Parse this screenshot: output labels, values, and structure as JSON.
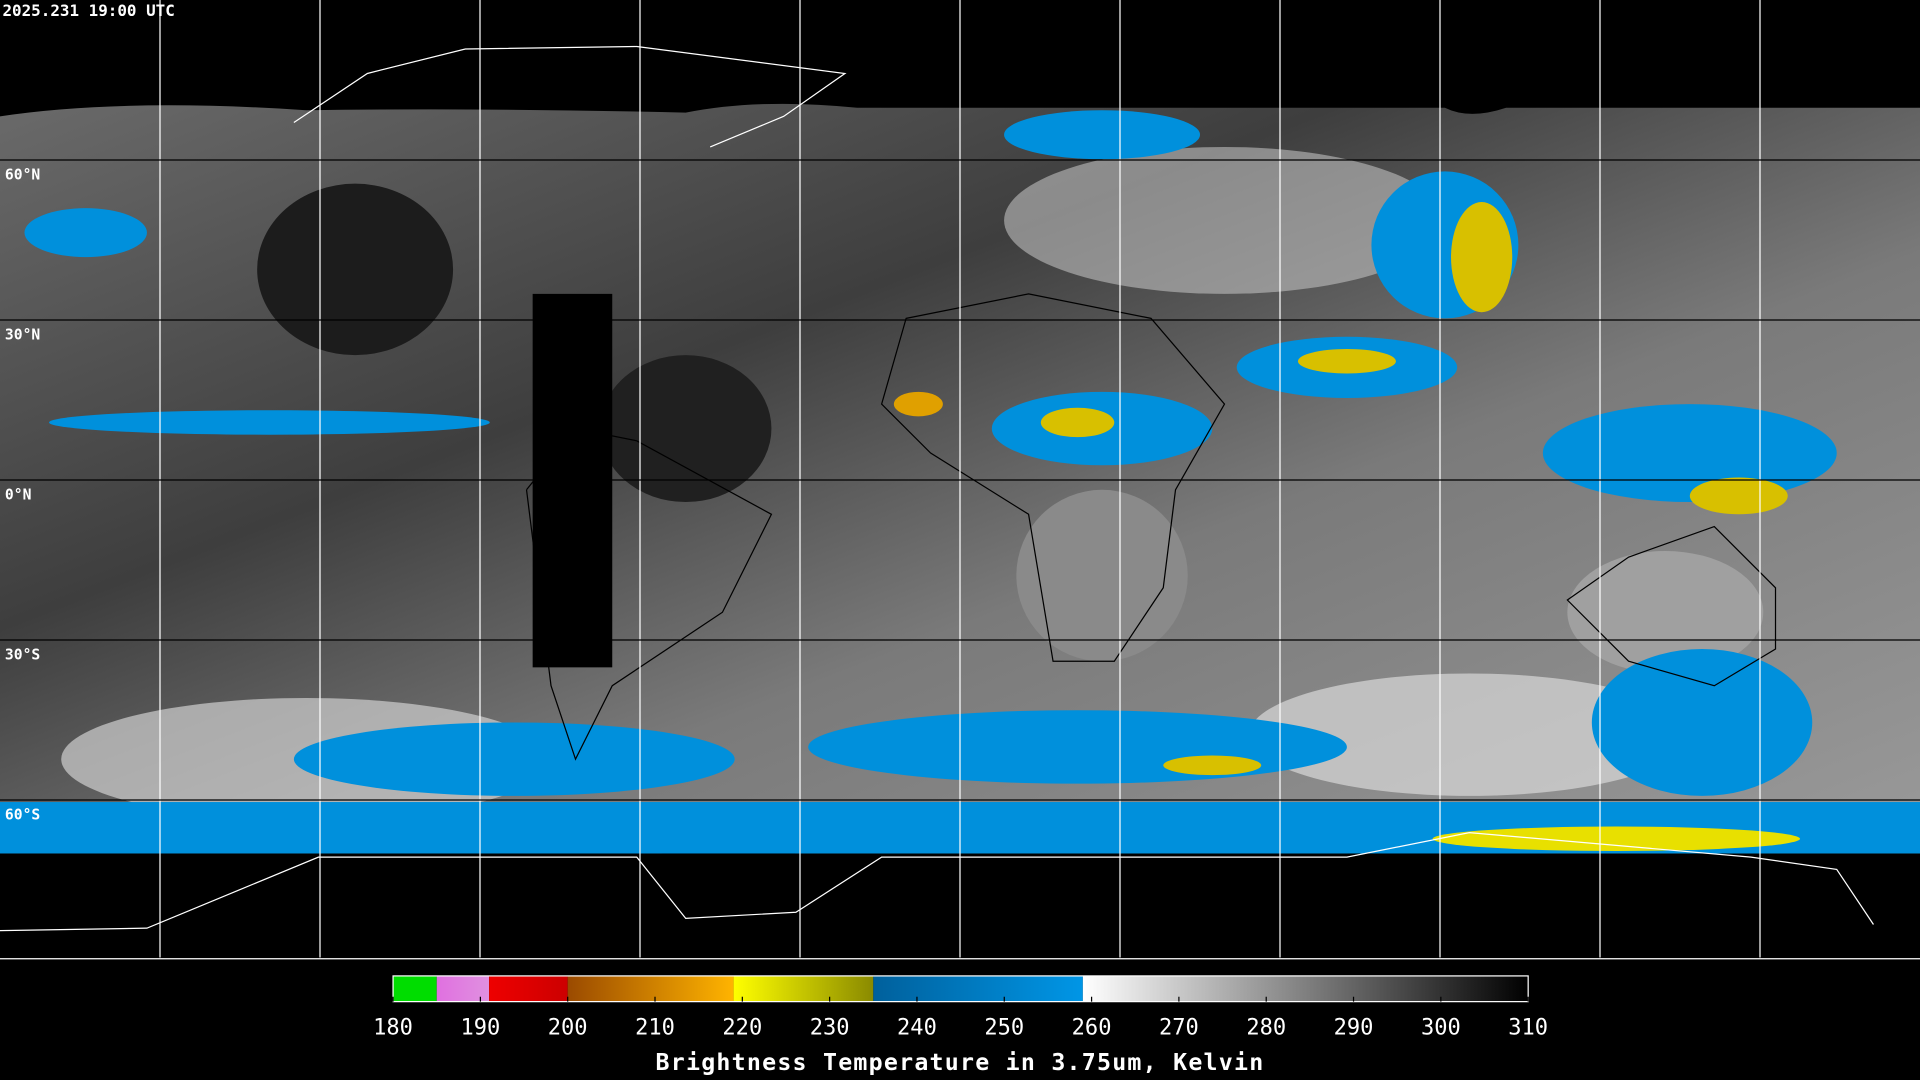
{
  "timestamp": "2025.231 19:00 UTC",
  "latitude_lines": [
    {
      "value": 60,
      "label": "60°N"
    },
    {
      "value": 30,
      "label": "30°N"
    },
    {
      "value": 0,
      "label": "0°N"
    },
    {
      "value": -30,
      "label": "30°S"
    },
    {
      "value": -60,
      "label": "60°S"
    }
  ],
  "colorbar": {
    "title": "Brightness Temperature in 3.75um, Kelvin",
    "range": [
      180,
      310
    ],
    "ticks": [
      180,
      190,
      200,
      210,
      220,
      230,
      240,
      250,
      260,
      270,
      280,
      290,
      300,
      310
    ],
    "segments": [
      {
        "from": 180,
        "to": 185,
        "colors": [
          "#00dd00",
          "#00dd00"
        ]
      },
      {
        "from": 185,
        "to": 191,
        "colors": [
          "#e070e0",
          "#e090e0"
        ]
      },
      {
        "from": 191,
        "to": 200,
        "colors": [
          "#ee0000",
          "#cc0000"
        ]
      },
      {
        "from": 200,
        "to": 219,
        "colors": [
          "#9a4a00",
          "#ffb400"
        ]
      },
      {
        "from": 219,
        "to": 235,
        "colors": [
          "#ffff00",
          "#8a8a00"
        ]
      },
      {
        "from": 235,
        "to": 259,
        "colors": [
          "#00609c",
          "#0096e6"
        ]
      },
      {
        "from": 259,
        "to": 310,
        "colors": [
          "#ffffff",
          "#000000"
        ]
      }
    ]
  }
}
